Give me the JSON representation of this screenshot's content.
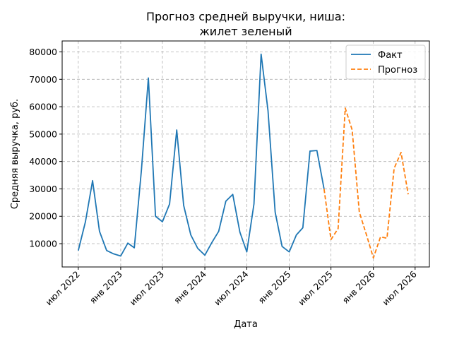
{
  "chart_data": {
    "type": "line",
    "title_lines": [
      "Прогноз средней выручки, ниша:",
      "жилет зеленый"
    ],
    "xlabel": "Дата",
    "ylabel": "Средняя выручка, руб.",
    "x_ticks": [
      {
        "label": "июл 2022",
        "date": "2022-07"
      },
      {
        "label": "янв 2023",
        "date": "2023-01"
      },
      {
        "label": "июл 2023",
        "date": "2023-07"
      },
      {
        "label": "янв 2024",
        "date": "2024-01"
      },
      {
        "label": "июл 2024",
        "date": "2024-07"
      },
      {
        "label": "янв 2025",
        "date": "2025-01"
      },
      {
        "label": "июл 2025",
        "date": "2025-07"
      },
      {
        "label": "янв 2026",
        "date": "2026-01"
      },
      {
        "label": "июл 2026",
        "date": "2026-07"
      }
    ],
    "y_ticks": [
      10000,
      20000,
      30000,
      40000,
      50000,
      60000,
      70000,
      80000
    ],
    "ylim": [
      1500,
      84000
    ],
    "xlim": [
      "2022-04-22",
      "2026-09-01"
    ],
    "grid": true,
    "legend_position": "top-right",
    "series": [
      {
        "name": "Факт",
        "color": "#1f77b4",
        "style": "solid",
        "points": [
          {
            "x": "2022-07",
            "y": 7500
          },
          {
            "x": "2022-08",
            "y": 18000
          },
          {
            "x": "2022-09",
            "y": 33000
          },
          {
            "x": "2022-10",
            "y": 14500
          },
          {
            "x": "2022-11",
            "y": 7500
          },
          {
            "x": "2022-12",
            "y": 6300
          },
          {
            "x": "2023-01",
            "y": 5500
          },
          {
            "x": "2023-02",
            "y": 10200
          },
          {
            "x": "2023-03",
            "y": 8500
          },
          {
            "x": "2023-04",
            "y": 37000
          },
          {
            "x": "2023-05",
            "y": 70500
          },
          {
            "x": "2023-06",
            "y": 20000
          },
          {
            "x": "2023-07",
            "y": 18000
          },
          {
            "x": "2023-08",
            "y": 24500
          },
          {
            "x": "2023-09",
            "y": 51500
          },
          {
            "x": "2023-10",
            "y": 24000
          },
          {
            "x": "2023-11",
            "y": 13200
          },
          {
            "x": "2023-12",
            "y": 8300
          },
          {
            "x": "2024-01",
            "y": 5800
          },
          {
            "x": "2024-02",
            "y": 10500
          },
          {
            "x": "2024-03",
            "y": 14500
          },
          {
            "x": "2024-04",
            "y": 25500
          },
          {
            "x": "2024-05",
            "y": 28000
          },
          {
            "x": "2024-06",
            "y": 14200
          },
          {
            "x": "2024-07",
            "y": 7000
          },
          {
            "x": "2024-08",
            "y": 24500
          },
          {
            "x": "2024-09",
            "y": 79200
          },
          {
            "x": "2024-10",
            "y": 58500
          },
          {
            "x": "2024-11",
            "y": 21500
          },
          {
            "x": "2024-12",
            "y": 9000
          },
          {
            "x": "2025-01",
            "y": 7000
          },
          {
            "x": "2025-02",
            "y": 13200
          },
          {
            "x": "2025-03",
            "y": 15800
          },
          {
            "x": "2025-04",
            "y": 43800
          },
          {
            "x": "2025-05",
            "y": 44000
          },
          {
            "x": "2025-06",
            "y": 30000
          }
        ]
      },
      {
        "name": "Прогноз",
        "color": "#ff7f0e",
        "style": "dashed",
        "points": [
          {
            "x": "2025-06",
            "y": 30000
          },
          {
            "x": "2025-07",
            "y": 11500
          },
          {
            "x": "2025-08",
            "y": 15500
          },
          {
            "x": "2025-09",
            "y": 59500
          },
          {
            "x": "2025-10",
            "y": 51500
          },
          {
            "x": "2025-11",
            "y": 21500
          },
          {
            "x": "2025-12",
            "y": 13500
          },
          {
            "x": "2026-01",
            "y": 4800
          },
          {
            "x": "2026-02",
            "y": 12500
          },
          {
            "x": "2026-03",
            "y": 12000
          },
          {
            "x": "2026-04",
            "y": 37500
          },
          {
            "x": "2026-05",
            "y": 43300
          },
          {
            "x": "2026-06",
            "y": 28000
          }
        ]
      }
    ]
  }
}
